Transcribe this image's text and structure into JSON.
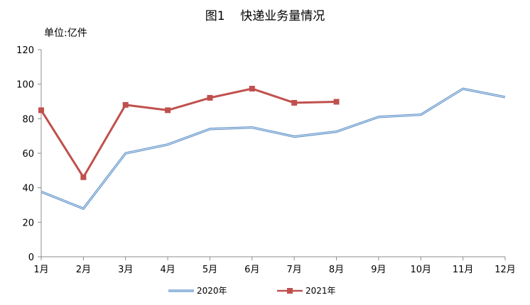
{
  "chart_data": {
    "type": "line",
    "title": "图1    快递业务量情况",
    "unit_label": "单位:亿件",
    "categories": [
      "1月",
      "2月",
      "3月",
      "4月",
      "5月",
      "6月",
      "7月",
      "8月",
      "9月",
      "10月",
      "11月",
      "12月"
    ],
    "ylim": [
      0,
      120
    ],
    "yticks": [
      "0",
      "20",
      "40",
      "60",
      "80",
      "100",
      "120"
    ],
    "grid": false,
    "legend_position": "bottom",
    "series": [
      {
        "name": "2020年",
        "color": "#5b8fc7",
        "marker": "none",
        "values": [
          37.7,
          27.9,
          59.9,
          65.0,
          74.0,
          74.9,
          69.6,
          72.5,
          81.0,
          82.3,
          97.3,
          92.5
        ]
      },
      {
        "name": "2021年",
        "color": "#c0504d",
        "marker": "square",
        "values": [
          84.9,
          46.1,
          88.0,
          84.9,
          92.1,
          97.4,
          89.2,
          89.8,
          null,
          null,
          null,
          null
        ]
      }
    ]
  }
}
